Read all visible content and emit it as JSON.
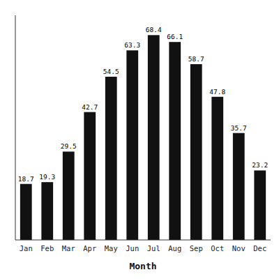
{
  "chart_data": {
    "type": "bar",
    "categories": [
      "Jan",
      "Feb",
      "Mar",
      "Apr",
      "May",
      "Jun",
      "Jul",
      "Aug",
      "Sep",
      "Oct",
      "Nov",
      "Dec"
    ],
    "values": [
      18.7,
      19.3,
      29.5,
      42.7,
      54.5,
      63.3,
      68.4,
      66.1,
      58.7,
      47.8,
      35.7,
      23.2
    ],
    "color": "#111111",
    "xlabel": "Month",
    "ylim": [
      0,
      75
    ],
    "data_labels": true,
    "tick_labels": "x",
    "grid": false
  }
}
